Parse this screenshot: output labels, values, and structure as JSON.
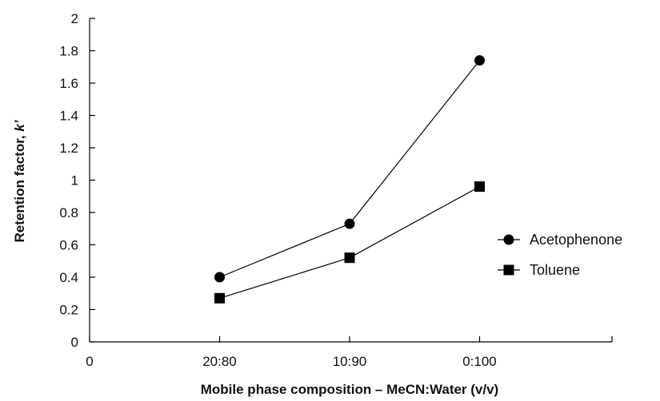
{
  "chart_data": {
    "type": "line",
    "xlabel": "Mobile phase composition – MeCN:Water (v/v)",
    "ylabel_prefix": "Retention factor, ",
    "ylabel_symbol": "k’",
    "x_tick_labels": [
      "0",
      "20:80",
      "10:90",
      "0:100"
    ],
    "y_ticks": [
      0,
      0.2,
      0.4,
      0.6,
      0.8,
      1,
      1.2,
      1.4,
      1.6,
      1.8,
      2
    ],
    "y_tick_labels": [
      "0",
      "0.2",
      "0.4",
      "0.6",
      "0.8",
      "1",
      "1.2",
      "1.4",
      "1.6",
      "1.8",
      "2"
    ],
    "ylim": [
      0,
      2
    ],
    "categories": [
      "20:80",
      "10:90",
      "0:100"
    ],
    "series": [
      {
        "name": "Acetophenone",
        "marker": "circle",
        "values": [
          0.4,
          0.73,
          1.74
        ]
      },
      {
        "name": "Toluene",
        "marker": "square",
        "values": [
          0.27,
          0.52,
          0.96
        ]
      }
    ],
    "legend_position": "right",
    "grid": false,
    "line_color": "#000000",
    "marker_color": "#000000"
  }
}
